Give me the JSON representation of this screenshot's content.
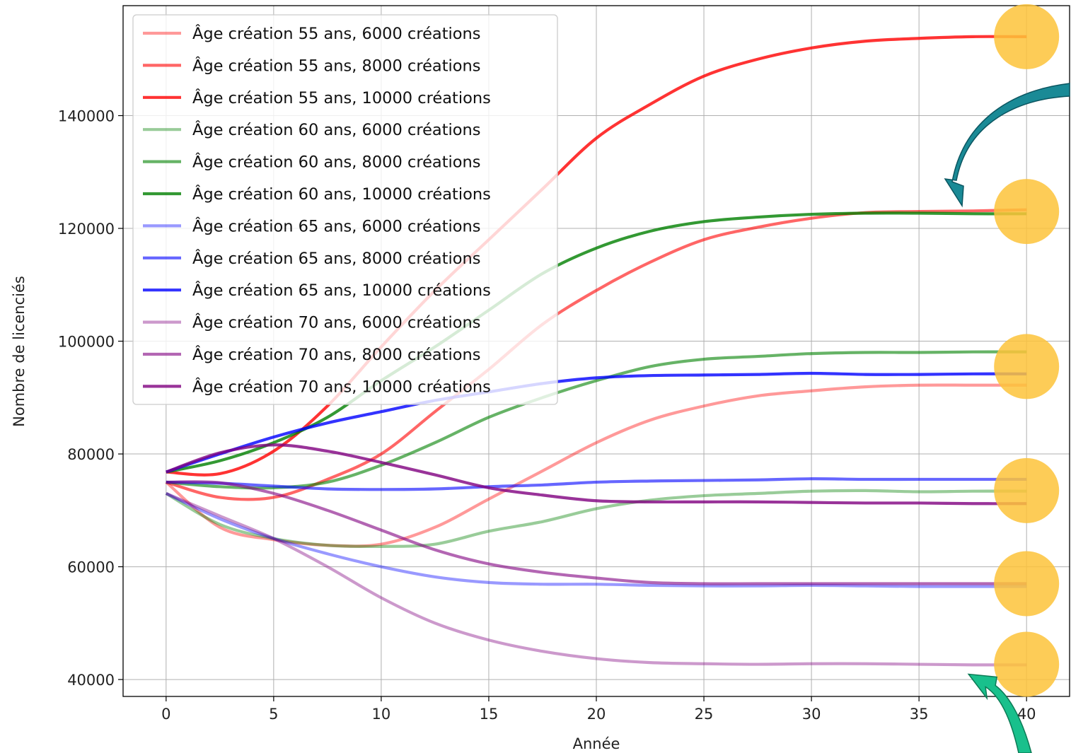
{
  "chart_data": {
    "type": "line",
    "title": "",
    "xlabel": "Année",
    "ylabel": "Nombre de licenciés",
    "xlim": [
      -2,
      42
    ],
    "ylim": [
      37000,
      159500
    ],
    "x_ticks": [
      0,
      5,
      10,
      15,
      20,
      25,
      30,
      35,
      40
    ],
    "y_ticks": [
      40000,
      60000,
      80000,
      100000,
      120000,
      140000
    ],
    "grid": true,
    "legend_position": "upper-left",
    "x": [
      0,
      2.5,
      5,
      7.5,
      10,
      12.5,
      15,
      17.5,
      20,
      22.5,
      25,
      27.5,
      30,
      32.5,
      35,
      37.5,
      40
    ],
    "series": [
      {
        "name": "Âge création 55 ans, 6000 créations",
        "color": "#ff0000",
        "opacity": 0.4,
        "values": [
          75000,
          67000,
          64800,
          63800,
          64000,
          67000,
          72000,
          77000,
          82000,
          86000,
          88500,
          90300,
          91200,
          91900,
          92200,
          92200,
          92200
        ]
      },
      {
        "name": "Âge création 55 ans, 8000 créations",
        "color": "#ff0000",
        "opacity": 0.6,
        "values": [
          75000,
          72300,
          72300,
          75500,
          80000,
          87500,
          95000,
          103000,
          109000,
          114000,
          118000,
          120200,
          121800,
          122800,
          123000,
          123100,
          123300
        ]
      },
      {
        "name": "Âge création 55 ans, 10000 créations",
        "color": "#ff0000",
        "opacity": 0.8,
        "values": [
          76800,
          76500,
          80500,
          88500,
          99000,
          109000,
          118000,
          127000,
          136000,
          142000,
          147000,
          150000,
          152000,
          153200,
          153700,
          154000,
          154000
        ]
      },
      {
        "name": "Âge création 60 ans, 6000 créations",
        "color": "#008000",
        "opacity": 0.4,
        "values": [
          73000,
          67500,
          65000,
          63800,
          63600,
          64000,
          66300,
          68000,
          70300,
          71800,
          72600,
          73000,
          73400,
          73500,
          73300,
          73400,
          73400
        ]
      },
      {
        "name": "Âge création 60 ans, 8000 créations",
        "color": "#008000",
        "opacity": 0.6,
        "values": [
          75000,
          74200,
          74000,
          75000,
          78000,
          82000,
          86500,
          90000,
          93000,
          95500,
          96800,
          97300,
          97800,
          98000,
          98000,
          98100,
          98100
        ]
      },
      {
        "name": "Âge création 60 ans, 10000 créations",
        "color": "#008000",
        "opacity": 0.8,
        "values": [
          76800,
          78800,
          82000,
          86500,
          93000,
          99000,
          105500,
          112000,
          116500,
          119500,
          121200,
          122000,
          122500,
          122700,
          122700,
          122600,
          122600
        ]
      },
      {
        "name": "Âge création 65 ans, 6000 créations",
        "color": "#0000ff",
        "opacity": 0.4,
        "values": [
          73000,
          68500,
          65000,
          62300,
          60000,
          58200,
          57200,
          56900,
          56900,
          56700,
          56600,
          56600,
          56700,
          56600,
          56500,
          56500,
          56500
        ]
      },
      {
        "name": "Âge création 65 ans, 8000 créations",
        "color": "#0000ff",
        "opacity": 0.6,
        "values": [
          75000,
          74800,
          74300,
          73800,
          73700,
          73800,
          74200,
          74500,
          75000,
          75200,
          75300,
          75400,
          75600,
          75500,
          75500,
          75500,
          75500
        ]
      },
      {
        "name": "Âge création 65 ans, 10000 créations",
        "color": "#0000ff",
        "opacity": 0.8,
        "values": [
          76800,
          80000,
          83000,
          85500,
          87500,
          89500,
          91000,
          92500,
          93500,
          93900,
          94000,
          94100,
          94300,
          94100,
          94100,
          94200,
          94200
        ]
      },
      {
        "name": "Âge création 70 ans, 6000 créations",
        "color": "#800080",
        "opacity": 0.4,
        "values": [
          73000,
          69000,
          65000,
          60000,
          54500,
          50000,
          47000,
          45000,
          43700,
          43000,
          42800,
          42700,
          42800,
          42800,
          42700,
          42600,
          42600
        ]
      },
      {
        "name": "Âge création 70 ans, 8000 créations",
        "color": "#800080",
        "opacity": 0.6,
        "values": [
          75000,
          74900,
          73000,
          70000,
          66500,
          63000,
          60500,
          59000,
          58000,
          57200,
          57000,
          57000,
          57000,
          57000,
          57000,
          57000,
          57000
        ]
      },
      {
        "name": "Âge création 70 ans, 10000 créations",
        "color": "#800080",
        "opacity": 0.8,
        "values": [
          76800,
          80200,
          81600,
          80500,
          78500,
          76300,
          74000,
          72700,
          71700,
          71500,
          71500,
          71500,
          71400,
          71300,
          71300,
          71200,
          71200
        ]
      }
    ],
    "annotations": {
      "highlight_circles": {
        "color": "#fdc339",
        "opacity": 0.85,
        "x": 40,
        "y": [
          154000,
          123000,
          95500,
          73500,
          57000,
          42700
        ]
      },
      "arrows": [
        {
          "color": "#1a8a96",
          "direction": "top-right to left",
          "target_x": 37,
          "target_y": 123000
        },
        {
          "color": "#19c08c",
          "direction": "bottom to upper-left",
          "target_x": 37.5,
          "target_y": 42700
        }
      ]
    }
  }
}
